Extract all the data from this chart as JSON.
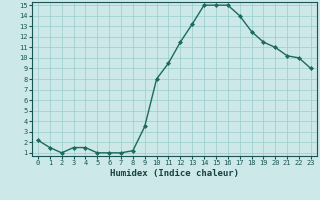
{
  "x": [
    0,
    1,
    2,
    3,
    4,
    5,
    6,
    7,
    8,
    9,
    10,
    11,
    12,
    13,
    14,
    15,
    16,
    17,
    18,
    19,
    20,
    21,
    22,
    23
  ],
  "y": [
    2.2,
    1.5,
    1.0,
    1.5,
    1.5,
    1.0,
    1.0,
    1.0,
    1.2,
    3.5,
    8.0,
    9.5,
    11.5,
    13.2,
    15.0,
    15.0,
    15.0,
    14.0,
    12.5,
    11.5,
    11.0,
    10.2,
    10.0,
    9.0
  ],
  "xlabel": "Humidex (Indice chaleur)",
  "ylim_min": 1,
  "ylim_max": 15,
  "xlim_min": 0,
  "xlim_max": 23,
  "line_color": "#1a6b5a",
  "bg_color": "#cce8e8",
  "grid_color": "#99cccc",
  "tick_color": "#1a5555",
  "label_color": "#1a4040",
  "yticks": [
    1,
    2,
    3,
    4,
    5,
    6,
    7,
    8,
    9,
    10,
    11,
    12,
    13,
    14,
    15
  ],
  "xticks": [
    0,
    1,
    2,
    3,
    4,
    5,
    6,
    7,
    8,
    9,
    10,
    11,
    12,
    13,
    14,
    15,
    16,
    17,
    18,
    19,
    20,
    21,
    22,
    23
  ],
  "tick_fontsize": 5.0,
  "xlabel_fontsize": 6.5,
  "marker_size": 2.0,
  "linewidth": 1.0
}
